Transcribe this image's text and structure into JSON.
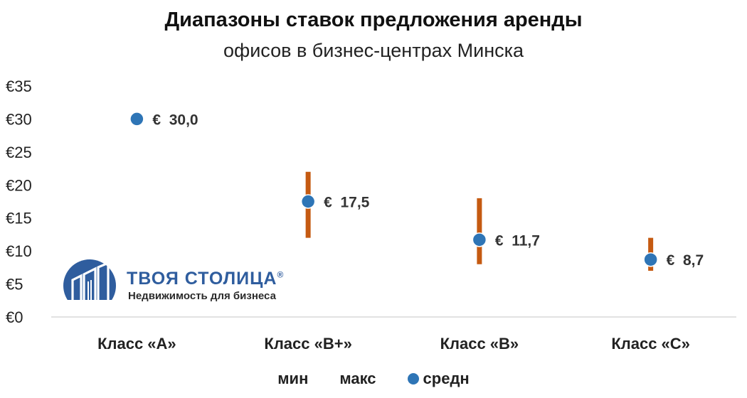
{
  "chart_data": {
    "type": "scatter",
    "title": "Диапазоны ставок предложения аренды",
    "subtitle": "офисов в бизнес-центрах Минска",
    "categories": [
      "Класс «А»",
      "Класс «В+»",
      "Класс «В»",
      "Класс «С»"
    ],
    "series": [
      {
        "name": "мин",
        "values": [
          null,
          12,
          8,
          7
        ]
      },
      {
        "name": "макс",
        "values": [
          null,
          22,
          18,
          12
        ]
      },
      {
        "name": "средн",
        "values": [
          30.0,
          17.5,
          11.7,
          8.7
        ]
      }
    ],
    "data_labels": [
      "€  30,0",
      "€  17,5",
      "€  11,7",
      "€  8,7"
    ],
    "y_ticks": [
      0,
      5,
      10,
      15,
      20,
      25,
      30,
      35
    ],
    "y_tick_labels": [
      "€0",
      "€5",
      "€10",
      "€15",
      "€20",
      "€25",
      "€30",
      "€35"
    ],
    "ylim": [
      0,
      35
    ],
    "grid": false,
    "legend_position": "bottom",
    "colors": {
      "range": "#c55a11",
      "avg": "#2e75b6"
    }
  },
  "logo": {
    "name": "ТВОЯ СТОЛИЦА",
    "registered": "®",
    "tagline": "Недвижимость для бизнеса",
    "color": "#2f5d9e"
  },
  "legend": {
    "min": "мин",
    "max": "макс",
    "avg": "средн"
  }
}
